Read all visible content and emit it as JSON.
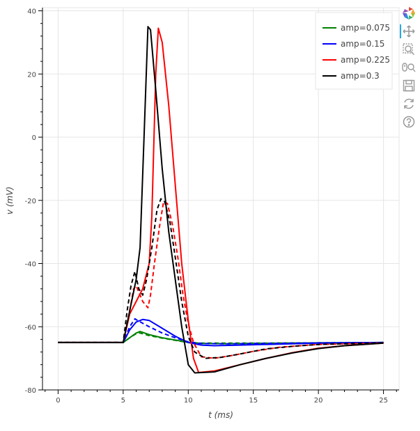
{
  "chart_data": {
    "type": "line",
    "title": "",
    "xlabel": "t (ms)",
    "ylabel": "v (mV)",
    "xlim": [
      -1.2,
      26.2
    ],
    "ylim": [
      -80,
      41
    ],
    "x_ticks": [
      0,
      5,
      10,
      15,
      20,
      25
    ],
    "y_ticks": [
      -80,
      -60,
      -40,
      -20,
      0,
      20,
      40
    ],
    "grid": true,
    "legend_position": "top-right",
    "series": [
      {
        "name": "amp=0.075",
        "color": "#008000",
        "style": "solid",
        "points": [
          [
            0,
            -65
          ],
          [
            5,
            -65
          ],
          [
            5.5,
            -63.5
          ],
          [
            6,
            -62
          ],
          [
            6.3,
            -61.5
          ],
          [
            7,
            -62.5
          ],
          [
            8,
            -63.5
          ],
          [
            9,
            -64.2
          ],
          [
            10,
            -65
          ],
          [
            11,
            -65.3
          ],
          [
            13,
            -65.4
          ],
          [
            15,
            -65.3
          ],
          [
            20,
            -65.1
          ],
          [
            25,
            -65
          ]
        ]
      },
      {
        "name": "",
        "color": "#008000",
        "style": "dashed",
        "points": [
          [
            0,
            -65
          ],
          [
            5,
            -65
          ],
          [
            5.5,
            -63.5
          ],
          [
            6,
            -62.2
          ],
          [
            6.3,
            -62
          ],
          [
            7,
            -62.8
          ],
          [
            8,
            -63.6
          ],
          [
            9,
            -64.3
          ],
          [
            10,
            -65
          ],
          [
            11,
            -65.2
          ],
          [
            15,
            -65.2
          ],
          [
            20,
            -65.1
          ],
          [
            25,
            -65
          ]
        ]
      },
      {
        "name": "amp=0.15",
        "color": "#0000ff",
        "style": "solid",
        "points": [
          [
            0,
            -65
          ],
          [
            5,
            -65
          ],
          [
            5.5,
            -61
          ],
          [
            6,
            -58.5
          ],
          [
            6.5,
            -57.7
          ],
          [
            7,
            -58
          ],
          [
            8,
            -60.5
          ],
          [
            9,
            -63
          ],
          [
            10,
            -65
          ],
          [
            11,
            -65.8
          ],
          [
            12,
            -66
          ],
          [
            14,
            -65.8
          ],
          [
            17,
            -65.5
          ],
          [
            20,
            -65.2
          ],
          [
            25,
            -65
          ]
        ]
      },
      {
        "name": "",
        "color": "#0000ff",
        "style": "dashed",
        "points": [
          [
            0,
            -65
          ],
          [
            5,
            -65
          ],
          [
            5.5,
            -60
          ],
          [
            5.9,
            -57.5
          ],
          [
            6.1,
            -58
          ],
          [
            7,
            -60
          ],
          [
            8,
            -62
          ],
          [
            9,
            -63.5
          ],
          [
            10,
            -64.8
          ],
          [
            11,
            -65.3
          ],
          [
            13,
            -65.4
          ],
          [
            15,
            -65.3
          ],
          [
            20,
            -65.1
          ],
          [
            25,
            -65
          ]
        ]
      },
      {
        "name": "amp=0.225",
        "color": "#ff0000",
        "style": "solid",
        "points": [
          [
            0,
            -65
          ],
          [
            5,
            -65
          ],
          [
            5.5,
            -56
          ],
          [
            6,
            -52
          ],
          [
            6.5,
            -48
          ],
          [
            7,
            -40
          ],
          [
            7.2,
            -25
          ],
          [
            7.5,
            20
          ],
          [
            7.7,
            34.5
          ],
          [
            8,
            30
          ],
          [
            8.5,
            10
          ],
          [
            9,
            -15
          ],
          [
            9.5,
            -40
          ],
          [
            10,
            -58
          ],
          [
            10.4,
            -70
          ],
          [
            10.8,
            -74.5
          ],
          [
            12,
            -74
          ],
          [
            14,
            -72
          ],
          [
            16,
            -70
          ],
          [
            18,
            -68.2
          ],
          [
            20,
            -66.8
          ],
          [
            22,
            -66
          ],
          [
            25,
            -65.2
          ]
        ]
      },
      {
        "name": "",
        "color": "#ff0000",
        "style": "dashed",
        "points": [
          [
            0,
            -65
          ],
          [
            5,
            -65
          ],
          [
            5.5,
            -55
          ],
          [
            5.8,
            -48
          ],
          [
            6,
            -47
          ],
          [
            6.5,
            -52
          ],
          [
            6.9,
            -54
          ],
          [
            7.1,
            -50
          ],
          [
            7.4,
            -40
          ],
          [
            7.8,
            -28
          ],
          [
            8.1,
            -20.5
          ],
          [
            8.4,
            -21
          ],
          [
            8.8,
            -28
          ],
          [
            9.2,
            -38
          ],
          [
            9.6,
            -50
          ],
          [
            10,
            -59
          ],
          [
            10.4,
            -65
          ],
          [
            11,
            -69.5
          ],
          [
            12,
            -70
          ],
          [
            13.5,
            -69
          ],
          [
            15,
            -67.8
          ],
          [
            17,
            -66.5
          ],
          [
            20,
            -65.6
          ],
          [
            25,
            -65.1
          ]
        ]
      },
      {
        "name": "amp=0.3",
        "color": "#000000",
        "style": "solid",
        "points": [
          [
            0,
            -65
          ],
          [
            5,
            -65
          ],
          [
            5.5,
            -55
          ],
          [
            6,
            -45
          ],
          [
            6.3,
            -35
          ],
          [
            6.6,
            0
          ],
          [
            6.9,
            35
          ],
          [
            7.1,
            34
          ],
          [
            7.5,
            15
          ],
          [
            8,
            -10
          ],
          [
            8.5,
            -30
          ],
          [
            9,
            -45
          ],
          [
            9.5,
            -60
          ],
          [
            10,
            -72
          ],
          [
            10.5,
            -74.6
          ],
          [
            12,
            -74.3
          ],
          [
            14,
            -72
          ],
          [
            16,
            -70
          ],
          [
            18,
            -68.3
          ],
          [
            20,
            -66.9
          ],
          [
            22,
            -66
          ],
          [
            25,
            -65.2
          ]
        ]
      },
      {
        "name": "",
        "color": "#000000",
        "style": "dashed",
        "points": [
          [
            0,
            -65
          ],
          [
            5,
            -65
          ],
          [
            5.3,
            -55
          ],
          [
            5.6,
            -47
          ],
          [
            5.9,
            -42.5
          ],
          [
            6.2,
            -48
          ],
          [
            6.5,
            -50
          ],
          [
            6.8,
            -45
          ],
          [
            7.2,
            -35
          ],
          [
            7.6,
            -23
          ],
          [
            7.9,
            -19.5
          ],
          [
            8.2,
            -20.5
          ],
          [
            8.6,
            -27
          ],
          [
            9,
            -38
          ],
          [
            9.5,
            -52
          ],
          [
            10,
            -63
          ],
          [
            10.5,
            -68
          ],
          [
            11.3,
            -70
          ],
          [
            12.5,
            -69.7
          ],
          [
            14,
            -68.6
          ],
          [
            16,
            -67
          ],
          [
            18,
            -66.2
          ],
          [
            20,
            -65.6
          ],
          [
            25,
            -65.1
          ]
        ]
      }
    ]
  },
  "toolbar": {
    "tools": [
      {
        "name": "bokeh-logo"
      },
      {
        "name": "pan-tool",
        "active": true
      },
      {
        "name": "box-zoom-tool"
      },
      {
        "name": "wheel-zoom-tool"
      },
      {
        "name": "save-tool"
      },
      {
        "name": "reset-tool"
      },
      {
        "name": "help-tool"
      }
    ]
  }
}
